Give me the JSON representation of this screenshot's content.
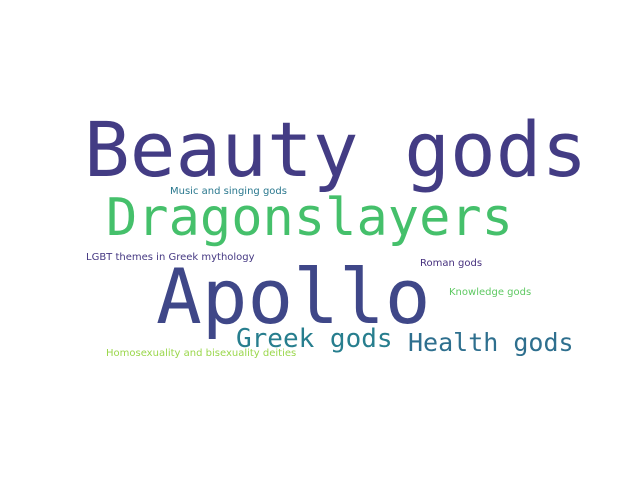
{
  "words": {
    "beauty_gods": "Beauty gods",
    "dragonslayers": "Dragonslayers",
    "apollo": "Apollo",
    "greek_gods": "Greek gods",
    "health_gods": "Health gods",
    "music_and_singing_gods": "Music and singing gods",
    "lgbt_themes": "LGBT themes in Greek mythology",
    "roman_gods": "Roman gods",
    "knowledge_gods": "Knowledge gods",
    "homosexuality_deities": "Homosexuality and bisexuality deities"
  },
  "colors": {
    "beauty_gods": "#433c84",
    "dragonslayers": "#45c06b",
    "apollo": "#3f4788",
    "greek_gods": "#277e8e",
    "health_gods": "#2e6f8e",
    "music_and_singing_gods": "#2a788e",
    "lgbt_themes": "#453882",
    "roman_gods": "#46307e",
    "knowledge_gods": "#5ec962",
    "homosexuality_deities": "#9ad74b",
    "background": "#ffffff"
  }
}
